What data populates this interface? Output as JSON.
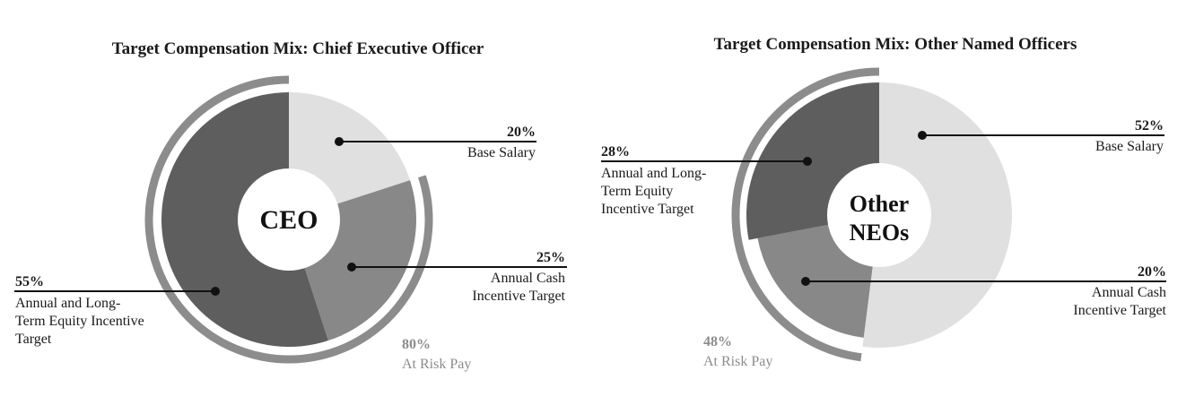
{
  "chart_data": [
    {
      "type": "pie",
      "title": "Target Compensation Mix: Chief Executive Officer",
      "center_label": [
        "CEO"
      ],
      "slices": [
        {
          "percent_label": "20%",
          "label_lines": [
            "Base Salary"
          ],
          "value": 20,
          "color": "#e0e0e0"
        },
        {
          "percent_label": "25%",
          "label_lines": [
            "Annual Cash",
            "Incentive Target"
          ],
          "value": 25,
          "color": "#888888"
        },
        {
          "percent_label": "55%",
          "label_lines": [
            "Annual and Long-",
            "Term Equity Incentive",
            "Target"
          ],
          "value": 55,
          "color": "#5e5e5e"
        }
      ],
      "at_risk": {
        "percent_label": "80%",
        "label": "At Risk Pay",
        "value": 80,
        "color": "#8c8c8c"
      }
    },
    {
      "type": "pie",
      "title": "Target Compensation Mix: Other Named Officers",
      "center_label": [
        "Other",
        "NEOs"
      ],
      "slices": [
        {
          "percent_label": "52%",
          "label_lines": [
            "Base Salary"
          ],
          "value": 52,
          "color": "#e0e0e0"
        },
        {
          "percent_label": "20%",
          "label_lines": [
            "Annual Cash",
            "Incentive Target"
          ],
          "value": 20,
          "color": "#888888"
        },
        {
          "percent_label": "28%",
          "label_lines": [
            "Annual and Long-",
            "Term Equity",
            "Incentive Target"
          ],
          "value": 28,
          "color": "#5e5e5e"
        }
      ],
      "at_risk": {
        "percent_label": "48%",
        "label": "At Risk Pay",
        "value": 48,
        "color": "#8c8c8c"
      }
    }
  ]
}
